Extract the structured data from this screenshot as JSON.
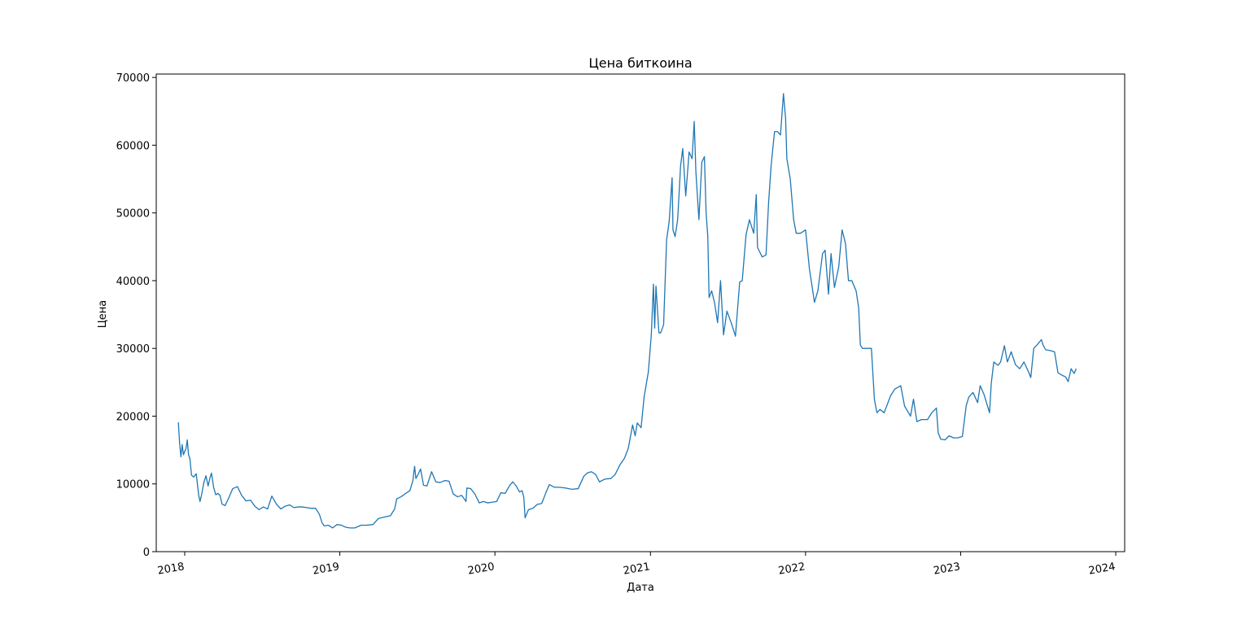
{
  "chart_data": {
    "type": "line",
    "title": "Цена биткоина",
    "xlabel": "Дата",
    "ylabel": "Цена",
    "x_tick_labels": [
      "2018",
      "2019",
      "2020",
      "2021",
      "2022",
      "2023",
      "2024"
    ],
    "y_tick_labels": [
      "0",
      "10000",
      "20000",
      "30000",
      "40000",
      "50000",
      "60000",
      "70000"
    ],
    "xlim": [
      "2017-10-26",
      "2024-01-22"
    ],
    "ylim": [
      0,
      70500
    ],
    "grid": false,
    "legend": "none",
    "line_color": "#1f77b4",
    "series": [
      {
        "x": [
          "2017-12-17",
          "2017-12-20",
          "2017-12-23",
          "2017-12-26",
          "2017-12-29",
          "2018-01-01",
          "2018-01-04",
          "2018-01-07",
          "2018-01-10",
          "2018-01-13",
          "2018-01-17",
          "2018-01-22",
          "2018-01-28",
          "2018-02-03",
          "2018-02-06",
          "2018-02-10",
          "2018-02-15",
          "2018-02-20",
          "2018-02-25",
          "2018-03-02",
          "2018-03-05",
          "2018-03-10",
          "2018-03-15",
          "2018-03-20",
          "2018-03-25",
          "2018-03-30",
          "2018-04-06",
          "2018-04-15",
          "2018-04-24",
          "2018-05-05",
          "2018-05-15",
          "2018-05-25",
          "2018-06-05",
          "2018-06-15",
          "2018-06-25",
          "2018-07-05",
          "2018-07-15",
          "2018-07-25",
          "2018-08-05",
          "2018-08-15",
          "2018-08-25",
          "2018-09-05",
          "2018-09-15",
          "2018-09-25",
          "2018-10-05",
          "2018-10-15",
          "2018-10-25",
          "2018-11-05",
          "2018-11-14",
          "2018-11-20",
          "2018-11-25",
          "2018-12-05",
          "2018-12-15",
          "2018-12-25",
          "2019-01-05",
          "2019-01-15",
          "2019-01-25",
          "2019-02-05",
          "2019-02-20",
          "2019-03-05",
          "2019-03-20",
          "2019-04-02",
          "2019-04-15",
          "2019-04-30",
          "2019-05-10",
          "2019-05-15",
          "2019-05-25",
          "2019-06-05",
          "2019-06-15",
          "2019-06-22",
          "2019-06-26",
          "2019-06-29",
          "2019-07-05",
          "2019-07-10",
          "2019-07-17",
          "2019-07-25",
          "2019-08-05",
          "2019-08-15",
          "2019-08-25",
          "2019-09-05",
          "2019-09-15",
          "2019-09-25",
          "2019-10-05",
          "2019-10-15",
          "2019-10-25",
          "2019-10-27",
          "2019-11-05",
          "2019-11-15",
          "2019-11-25",
          "2019-12-05",
          "2019-12-15",
          "2019-12-25",
          "2020-01-05",
          "2020-01-15",
          "2020-01-25",
          "2020-02-05",
          "2020-02-12",
          "2020-02-20",
          "2020-02-28",
          "2020-03-05",
          "2020-03-09",
          "2020-03-12",
          "2020-03-20",
          "2020-03-30",
          "2020-04-10",
          "2020-04-20",
          "2020-04-30",
          "2020-05-08",
          "2020-05-20",
          "2020-06-01",
          "2020-06-15",
          "2020-06-30",
          "2020-07-15",
          "2020-07-28",
          "2020-08-05",
          "2020-08-15",
          "2020-08-25",
          "2020-09-03",
          "2020-09-15",
          "2020-09-30",
          "2020-10-10",
          "2020-10-21",
          "2020-11-01",
          "2020-11-10",
          "2020-11-20",
          "2020-11-26",
          "2020-12-01",
          "2020-12-10",
          "2020-12-17",
          "2020-12-27",
          "2021-01-03",
          "2021-01-08",
          "2021-01-11",
          "2021-01-14",
          "2021-01-21",
          "2021-01-25",
          "2021-02-01",
          "2021-02-08",
          "2021-02-14",
          "2021-02-21",
          "2021-02-23",
          "2021-02-28",
          "2021-03-06",
          "2021-03-13",
          "2021-03-18",
          "2021-03-25",
          "2021-04-02",
          "2021-04-09",
          "2021-04-14",
          "2021-04-18",
          "2021-04-25",
          "2021-05-02",
          "2021-05-08",
          "2021-05-12",
          "2021-05-16",
          "2021-05-19",
          "2021-05-25",
          "2021-06-01",
          "2021-06-08",
          "2021-06-15",
          "2021-06-22",
          "2021-06-30",
          "2021-07-10",
          "2021-07-20",
          "2021-07-30",
          "2021-08-05",
          "2021-08-14",
          "2021-08-22",
          "2021-09-01",
          "2021-09-07",
          "2021-09-10",
          "2021-09-21",
          "2021-09-30",
          "2021-10-06",
          "2021-10-12",
          "2021-10-20",
          "2021-10-27",
          "2021-11-03",
          "2021-11-10",
          "2021-11-15",
          "2021-11-18",
          "2021-11-26",
          "2021-12-04",
          "2021-12-10",
          "2021-12-20",
          "2022-01-01",
          "2022-01-10",
          "2022-01-22",
          "2022-01-30",
          "2022-02-10",
          "2022-02-16",
          "2022-02-24",
          "2022-03-02",
          "2022-03-10",
          "2022-03-20",
          "2022-03-28",
          "2022-04-05",
          "2022-04-12",
          "2022-04-20",
          "2022-04-30",
          "2022-05-06",
          "2022-05-10",
          "2022-05-15",
          "2022-05-25",
          "2022-06-05",
          "2022-06-12",
          "2022-06-18",
          "2022-06-25",
          "2022-07-05",
          "2022-07-20",
          "2022-07-30",
          "2022-08-13",
          "2022-08-22",
          "2022-09-05",
          "2022-09-12",
          "2022-09-20",
          "2022-10-01",
          "2022-10-15",
          "2022-10-25",
          "2022-11-05",
          "2022-11-09",
          "2022-11-15",
          "2022-11-25",
          "2022-12-05",
          "2022-12-15",
          "2022-12-25",
          "2023-01-05",
          "2023-01-14",
          "2023-01-20",
          "2023-01-30",
          "2023-02-10",
          "2023-02-16",
          "2023-02-25",
          "2023-03-10",
          "2023-03-14",
          "2023-03-20",
          "2023-03-30",
          "2023-04-05",
          "2023-04-14",
          "2023-04-21",
          "2023-04-30",
          "2023-05-10",
          "2023-05-20",
          "2023-05-30",
          "2023-06-10",
          "2023-06-15",
          "2023-06-22",
          "2023-07-01",
          "2023-07-10",
          "2023-07-14",
          "2023-07-20",
          "2023-07-30",
          "2023-08-10",
          "2023-08-18",
          "2023-08-29",
          "2023-09-05",
          "2023-09-11",
          "2023-09-18",
          "2023-09-25",
          "2023-09-30"
        ],
        "y": [
          19100,
          16000,
          14000,
          15800,
          14300,
          14800,
          15200,
          16500,
          14300,
          13800,
          11300,
          11000,
          11500,
          8300,
          7400,
          8500,
          10200,
          11200,
          9700,
          11000,
          11600,
          9500,
          8400,
          8600,
          8300,
          7000,
          6800,
          8000,
          9300,
          9600,
          8300,
          7500,
          7600,
          6700,
          6200,
          6600,
          6300,
          8200,
          7000,
          6300,
          6700,
          6900,
          6500,
          6600,
          6600,
          6500,
          6400,
          6400,
          5500,
          4300,
          3800,
          3900,
          3500,
          4000,
          3900,
          3600,
          3500,
          3500,
          3900,
          3900,
          4000,
          4900,
          5100,
          5300,
          6300,
          7800,
          8100,
          8600,
          9000,
          10500,
          12600,
          10800,
          11500,
          12200,
          9800,
          9700,
          11800,
          10300,
          10200,
          10500,
          10400,
          8500,
          8100,
          8300,
          7400,
          9400,
          9300,
          8500,
          7200,
          7400,
          7200,
          7300,
          7400,
          8700,
          8600,
          9800,
          10300,
          9700,
          8800,
          9000,
          8000,
          5000,
          6200,
          6400,
          7000,
          7100,
          8700,
          9900,
          9500,
          9500,
          9400,
          9200,
          9300,
          11100,
          11600,
          11800,
          11400,
          10300,
          10700,
          10800,
          11400,
          12800,
          13800,
          15300,
          18700,
          17100,
          19000,
          18300,
          22800,
          26500,
          32000,
          39500,
          33000,
          39200,
          32300,
          32300,
          33500,
          46000,
          48700,
          55200,
          47500,
          46500,
          49000,
          57000,
          59500,
          52500,
          59000,
          58000,
          63500,
          56000,
          49000,
          57500,
          58300,
          50000,
          46500,
          37500,
          38500,
          36700,
          33800,
          40000,
          32000,
          35500,
          33800,
          31800,
          39800,
          40000,
          46800,
          49000,
          47000,
          52700,
          44900,
          43500,
          43800,
          51500,
          57000,
          62000,
          62000,
          61500,
          67600,
          64000,
          58000,
          55000,
          49000,
          47000,
          47000,
          47500,
          41800,
          36800,
          38500,
          44000,
          44500,
          38000,
          44000,
          39000,
          42000,
          47500,
          45500,
          40000,
          40000,
          38500,
          36000,
          30500,
          30000,
          30000,
          30000,
          22500,
          20500,
          21000,
          20500,
          23000,
          24000,
          24500,
          21500,
          20000,
          22500,
          19200,
          19500,
          19500,
          20500,
          21200,
          17600,
          16600,
          16500,
          17100,
          16800,
          16800,
          17000,
          21500,
          22800,
          23500,
          22000,
          24500,
          23200,
          20500,
          24800,
          28000,
          27500,
          28000,
          30400,
          28000,
          29500,
          27600,
          27000,
          28000,
          26500,
          25700,
          30000,
          30600,
          31300,
          30500,
          29800,
          29700,
          29500,
          26400,
          26000,
          25800,
          25100,
          27000,
          26300,
          27000
        ]
      }
    ]
  }
}
